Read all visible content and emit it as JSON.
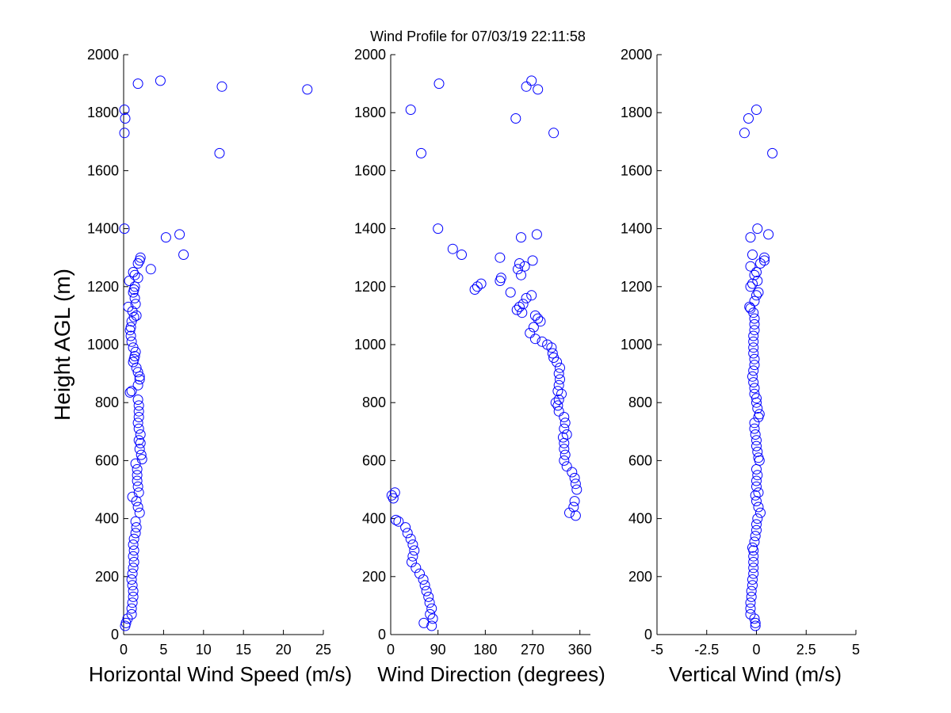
{
  "title": "Wind Profile for  07/03/19 22:11:58",
  "chart_data": [
    {
      "type": "scatter",
      "xlabel": "Horizontal Wind Speed (m/s)",
      "ylabel": "Height AGL (m)",
      "xlim": [
        0,
        25
      ],
      "ylim": [
        0,
        2000
      ],
      "xticks": [
        0,
        5,
        10,
        15,
        20,
        25
      ],
      "xtick_labels": [
        "0",
        "5",
        "10",
        "15",
        "20",
        "25"
      ],
      "yticks": [
        0,
        200,
        400,
        600,
        800,
        1000,
        1200,
        1400,
        1600,
        1800,
        2000
      ],
      "ytick_labels": [
        "0",
        "200",
        "400",
        "600",
        "800",
        "1000",
        "1200",
        "1400",
        "1600",
        "1800",
        "2000"
      ],
      "marker": "circle",
      "color": "#0000ff",
      "points": [
        [
          0.2,
          30
        ],
        [
          0.3,
          40
        ],
        [
          0.5,
          55
        ],
        [
          1.0,
          70
        ],
        [
          1.0,
          90
        ],
        [
          1.1,
          110
        ],
        [
          1.2,
          130
        ],
        [
          1.2,
          150
        ],
        [
          1.1,
          170
        ],
        [
          1.0,
          190
        ],
        [
          1.1,
          210
        ],
        [
          1.2,
          230
        ],
        [
          1.3,
          250
        ],
        [
          1.2,
          270
        ],
        [
          1.3,
          290
        ],
        [
          1.2,
          310
        ],
        [
          1.3,
          330
        ],
        [
          1.5,
          350
        ],
        [
          1.6,
          370
        ],
        [
          1.5,
          390
        ],
        [
          2.0,
          420
        ],
        [
          1.8,
          440
        ],
        [
          1.6,
          460
        ],
        [
          1.1,
          475
        ],
        [
          1.9,
          490
        ],
        [
          1.8,
          510
        ],
        [
          1.7,
          530
        ],
        [
          1.7,
          550
        ],
        [
          1.7,
          570
        ],
        [
          1.5,
          590
        ],
        [
          2.3,
          605
        ],
        [
          2.2,
          620
        ],
        [
          2.0,
          640
        ],
        [
          2.1,
          660
        ],
        [
          1.9,
          670
        ],
        [
          2.1,
          690
        ],
        [
          1.9,
          710
        ],
        [
          1.8,
          730
        ],
        [
          1.9,
          750
        ],
        [
          1.9,
          770
        ],
        [
          1.9,
          790
        ],
        [
          1.8,
          810
        ],
        [
          0.8,
          835
        ],
        [
          1.0,
          840
        ],
        [
          1.8,
          860
        ],
        [
          2.0,
          880
        ],
        [
          2.0,
          890
        ],
        [
          1.8,
          905
        ],
        [
          1.6,
          920
        ],
        [
          1.2,
          940
        ],
        [
          1.3,
          950
        ],
        [
          1.4,
          960
        ],
        [
          1.5,
          975
        ],
        [
          1.2,
          990
        ],
        [
          1.0,
          1010
        ],
        [
          0.9,
          1030
        ],
        [
          0.8,
          1050
        ],
        [
          0.9,
          1060
        ],
        [
          1.0,
          1080
        ],
        [
          1.3,
          1095
        ],
        [
          1.6,
          1100
        ],
        [
          1.1,
          1115
        ],
        [
          0.6,
          1130
        ],
        [
          1.5,
          1140
        ],
        [
          1.4,
          1160
        ],
        [
          1.2,
          1180
        ],
        [
          1.3,
          1190
        ],
        [
          1.4,
          1200
        ],
        [
          0.7,
          1220
        ],
        [
          1.8,
          1230
        ],
        [
          1.4,
          1240
        ],
        [
          1.2,
          1250
        ],
        [
          3.4,
          1260
        ],
        [
          1.8,
          1280
        ],
        [
          2.0,
          1290
        ],
        [
          2.1,
          1300
        ],
        [
          7.5,
          1310
        ],
        [
          5.3,
          1370
        ],
        [
          7.0,
          1380
        ],
        [
          0.1,
          1400
        ],
        [
          12.0,
          1660
        ],
        [
          0.1,
          1730
        ],
        [
          0.2,
          1780
        ],
        [
          0.1,
          1810
        ],
        [
          23.0,
          1880
        ],
        [
          12.3,
          1890
        ],
        [
          1.8,
          1900
        ],
        [
          4.6,
          1910
        ]
      ]
    },
    {
      "type": "scatter",
      "xlabel": "Wind Direction (degrees)",
      "ylabel": "",
      "xlim": [
        0,
        380
      ],
      "ylim": [
        0,
        2000
      ],
      "xticks": [
        0,
        90,
        180,
        270,
        360
      ],
      "xtick_labels": [
        "0",
        "90",
        "180",
        "270",
        "360"
      ],
      "yticks": [
        0,
        200,
        400,
        600,
        800,
        1000,
        1200,
        1400,
        1600,
        1800,
        2000
      ],
      "ytick_labels": [
        "0",
        "200",
        "400",
        "600",
        "800",
        "1000",
        "1200",
        "1400",
        "1600",
        "1800",
        "2000"
      ],
      "marker": "circle",
      "color": "#0000ff",
      "points": [
        [
          78,
          30
        ],
        [
          63,
          40
        ],
        [
          80,
          55
        ],
        [
          75,
          70
        ],
        [
          78,
          90
        ],
        [
          74,
          110
        ],
        [
          72,
          130
        ],
        [
          68,
          150
        ],
        [
          65,
          170
        ],
        [
          62,
          190
        ],
        [
          55,
          210
        ],
        [
          48,
          230
        ],
        [
          40,
          250
        ],
        [
          42,
          270
        ],
        [
          45,
          290
        ],
        [
          42,
          310
        ],
        [
          38,
          330
        ],
        [
          32,
          350
        ],
        [
          28,
          370
        ],
        [
          15,
          390
        ],
        [
          10,
          395
        ],
        [
          5,
          470
        ],
        [
          2,
          480
        ],
        [
          8,
          490
        ],
        [
          340,
          420
        ],
        [
          348,
          440
        ],
        [
          350,
          460
        ],
        [
          352,
          410
        ],
        [
          354,
          500
        ],
        [
          352,
          520
        ],
        [
          350,
          540
        ],
        [
          345,
          560
        ],
        [
          335,
          580
        ],
        [
          330,
          600
        ],
        [
          332,
          620
        ],
        [
          330,
          640
        ],
        [
          330,
          660
        ],
        [
          328,
          680
        ],
        [
          335,
          690
        ],
        [
          330,
          710
        ],
        [
          332,
          730
        ],
        [
          330,
          750
        ],
        [
          320,
          770
        ],
        [
          318,
          790
        ],
        [
          314,
          800
        ],
        [
          320,
          810
        ],
        [
          325,
          830
        ],
        [
          318,
          840
        ],
        [
          320,
          860
        ],
        [
          322,
          880
        ],
        [
          320,
          900
        ],
        [
          322,
          920
        ],
        [
          316,
          940
        ],
        [
          310,
          955
        ],
        [
          308,
          970
        ],
        [
          306,
          990
        ],
        [
          298,
          1000
        ],
        [
          288,
          1010
        ],
        [
          275,
          1020
        ],
        [
          265,
          1040
        ],
        [
          272,
          1060
        ],
        [
          285,
          1080
        ],
        [
          280,
          1090
        ],
        [
          275,
          1100
        ],
        [
          250,
          1110
        ],
        [
          240,
          1120
        ],
        [
          245,
          1130
        ],
        [
          252,
          1140
        ],
        [
          258,
          1160
        ],
        [
          268,
          1170
        ],
        [
          228,
          1180
        ],
        [
          160,
          1190
        ],
        [
          165,
          1200
        ],
        [
          172,
          1210
        ],
        [
          208,
          1220
        ],
        [
          210,
          1230
        ],
        [
          248,
          1240
        ],
        [
          242,
          1260
        ],
        [
          255,
          1270
        ],
        [
          245,
          1280
        ],
        [
          270,
          1290
        ],
        [
          208,
          1300
        ],
        [
          135,
          1310
        ],
        [
          118,
          1330
        ],
        [
          248,
          1370
        ],
        [
          278,
          1380
        ],
        [
          90,
          1400
        ],
        [
          58,
          1660
        ],
        [
          310,
          1730
        ],
        [
          238,
          1780
        ],
        [
          38,
          1810
        ],
        [
          280,
          1880
        ],
        [
          258,
          1890
        ],
        [
          92,
          1900
        ],
        [
          268,
          1910
        ]
      ]
    },
    {
      "type": "scatter",
      "xlabel": "Vertical Wind (m/s)",
      "ylabel": "",
      "xlim": [
        -5,
        5
      ],
      "ylim": [
        0,
        2000
      ],
      "xticks": [
        -5,
        -2.5,
        0,
        2.5,
        5
      ],
      "xtick_labels": [
        "-5",
        "-2.5",
        "0",
        "2.5",
        "5"
      ],
      "yticks": [
        0,
        200,
        400,
        600,
        800,
        1000,
        1200,
        1400,
        1600,
        1800,
        2000
      ],
      "ytick_labels": [
        "0",
        "200",
        "400",
        "600",
        "800",
        "1000",
        "1200",
        "1400",
        "1600",
        "1800",
        "2000"
      ],
      "marker": "circle",
      "color": "#0000ff",
      "points": [
        [
          -0.05,
          30
        ],
        [
          -0.05,
          40
        ],
        [
          -0.1,
          55
        ],
        [
          -0.3,
          70
        ],
        [
          -0.3,
          90
        ],
        [
          -0.3,
          110
        ],
        [
          -0.25,
          130
        ],
        [
          -0.25,
          150
        ],
        [
          -0.2,
          170
        ],
        [
          -0.2,
          190
        ],
        [
          -0.15,
          210
        ],
        [
          -0.15,
          230
        ],
        [
          -0.15,
          250
        ],
        [
          -0.15,
          270
        ],
        [
          -0.15,
          290
        ],
        [
          -0.2,
          300
        ],
        [
          -0.1,
          320
        ],
        [
          -0.05,
          340
        ],
        [
          0.0,
          360
        ],
        [
          0.0,
          380
        ],
        [
          0.05,
          400
        ],
        [
          0.2,
          420
        ],
        [
          0.1,
          440
        ],
        [
          0.0,
          460
        ],
        [
          -0.05,
          480
        ],
        [
          0.1,
          490
        ],
        [
          0.0,
          510
        ],
        [
          0.0,
          530
        ],
        [
          0.05,
          550
        ],
        [
          0.0,
          570
        ],
        [
          0.15,
          600
        ],
        [
          0.1,
          610
        ],
        [
          0.05,
          630
        ],
        [
          0.0,
          650
        ],
        [
          0.0,
          670
        ],
        [
          -0.05,
          690
        ],
        [
          -0.1,
          710
        ],
        [
          -0.1,
          730
        ],
        [
          0.1,
          750
        ],
        [
          0.15,
          760
        ],
        [
          0.05,
          780
        ],
        [
          0.0,
          800
        ],
        [
          0.0,
          815
        ],
        [
          -0.1,
          830
        ],
        [
          -0.1,
          850
        ],
        [
          -0.15,
          870
        ],
        [
          -0.2,
          890
        ],
        [
          -0.15,
          910
        ],
        [
          -0.1,
          930
        ],
        [
          -0.1,
          950
        ],
        [
          -0.15,
          970
        ],
        [
          -0.15,
          990
        ],
        [
          -0.15,
          1010
        ],
        [
          -0.15,
          1030
        ],
        [
          -0.1,
          1050
        ],
        [
          -0.1,
          1070
        ],
        [
          -0.1,
          1090
        ],
        [
          -0.15,
          1110
        ],
        [
          -0.3,
          1125
        ],
        [
          -0.35,
          1130
        ],
        [
          -0.1,
          1150
        ],
        [
          0.0,
          1170
        ],
        [
          0.1,
          1180
        ],
        [
          -0.3,
          1200
        ],
        [
          -0.2,
          1210
        ],
        [
          0.05,
          1220
        ],
        [
          -0.1,
          1240
        ],
        [
          0.0,
          1250
        ],
        [
          -0.3,
          1270
        ],
        [
          0.2,
          1280
        ],
        [
          0.4,
          1290
        ],
        [
          0.4,
          1300
        ],
        [
          -0.2,
          1310
        ],
        [
          -0.3,
          1370
        ],
        [
          0.6,
          1380
        ],
        [
          0.05,
          1400
        ],
        [
          0.8,
          1660
        ],
        [
          -0.6,
          1730
        ],
        [
          -0.4,
          1780
        ],
        [
          0.0,
          1810
        ]
      ]
    }
  ]
}
